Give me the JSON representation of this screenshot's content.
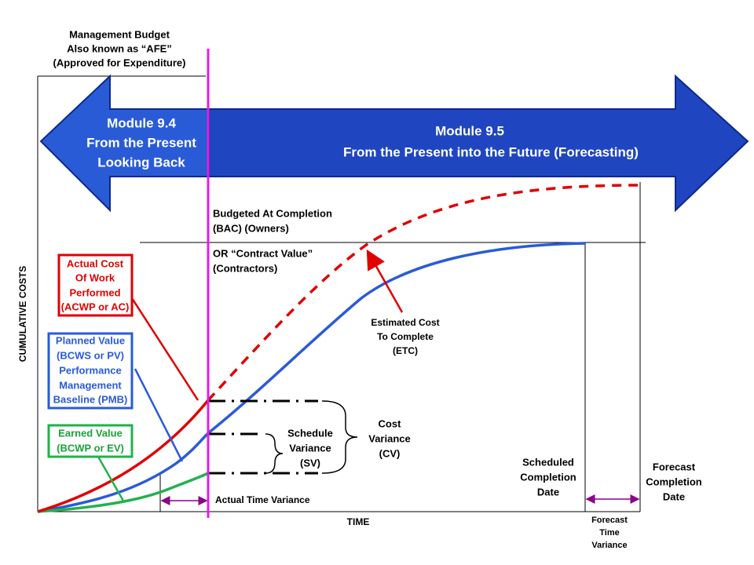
{
  "management_budget": [
    "Management Budget",
    "Also known as “AFE”",
    "(Approved for Expenditure)"
  ],
  "module_left": [
    "Module 9.4",
    "From the Present",
    "Looking Back"
  ],
  "module_right": [
    "Module 9.5",
    "From the Present into the Future (Forecasting)"
  ],
  "bac": [
    "Budgeted At Completion",
    "(BAC) (Owners)"
  ],
  "contract_value": [
    "OR “Contract Value”",
    "(Contractors)"
  ],
  "y_axis_label": "CUMULATIVE COSTS",
  "x_axis_label": "TIME",
  "actual_cost": [
    "Actual Cost",
    "Of Work",
    "Performed",
    "(ACWP or AC)"
  ],
  "planned_value": [
    "Planned Value",
    "(BCWS or PV)",
    "Performance",
    "Management",
    "Baseline (PMB)"
  ],
  "earned_value": [
    "Earned Value",
    "(BCWP or EV)"
  ],
  "estimated_cost": [
    "Estimated Cost",
    "To Complete",
    "(ETC)"
  ],
  "cost_variance": [
    "Cost",
    "Variance",
    "(CV)"
  ],
  "schedule_variance": [
    "Schedule",
    "Variance",
    "(SV)"
  ],
  "actual_time_variance": "Actual Time Variance",
  "scheduled_completion": [
    "Scheduled",
    "Completion",
    "Date"
  ],
  "forecast_completion": [
    "Forecast",
    "Completion",
    "Date"
  ],
  "forecast_time_variance": [
    "Forecast",
    "Time",
    "Variance"
  ]
}
